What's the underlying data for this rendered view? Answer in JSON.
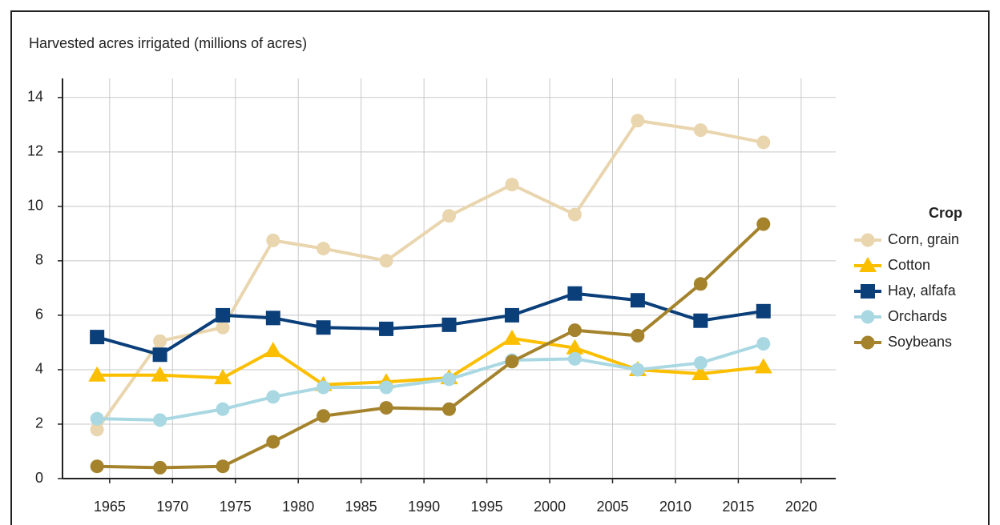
{
  "chart_data": {
    "type": "line",
    "y_label": "Harvested acres irrigated (millions of acres)",
    "legend_title": "Crop",
    "legend": "right",
    "grid": true,
    "x": [
      1964,
      1969,
      1974,
      1978,
      1982,
      1987,
      1992,
      1997,
      2002,
      2007,
      2012,
      2017
    ],
    "xlim": [
      1961.25,
      2022.75
    ],
    "xticks": [
      1965,
      1970,
      1975,
      1980,
      1985,
      1990,
      1995,
      2000,
      2005,
      2010,
      2015,
      2020
    ],
    "ylim": [
      0,
      14.7
    ],
    "yticks": [
      0,
      2,
      4,
      6,
      8,
      10,
      12,
      14
    ],
    "series": [
      {
        "name": "Corn, grain",
        "color": "#e9d5ae",
        "marker": "circle",
        "values": [
          1.8,
          5.05,
          5.55,
          8.75,
          8.45,
          8.0,
          9.65,
          10.8,
          9.7,
          13.15,
          12.8,
          12.35
        ]
      },
      {
        "name": "Cotton",
        "color": "#fbbf00",
        "marker": "triangle",
        "values": [
          3.8,
          3.8,
          3.7,
          4.7,
          3.45,
          3.55,
          3.7,
          5.15,
          4.8,
          4.0,
          3.85,
          4.1
        ]
      },
      {
        "name": "Hay, alfafa",
        "color": "#0a3f7a",
        "marker": "square",
        "values": [
          5.2,
          4.55,
          6.0,
          5.9,
          5.55,
          5.5,
          5.65,
          6.0,
          6.8,
          6.55,
          5.8,
          6.15
        ]
      },
      {
        "name": "Orchards",
        "color": "#a9d8e3",
        "marker": "circle",
        "values": [
          2.2,
          2.15,
          2.55,
          3.0,
          3.35,
          3.35,
          3.65,
          4.35,
          4.4,
          4.0,
          4.25,
          4.95
        ]
      },
      {
        "name": "Soybeans",
        "color": "#a4832c",
        "marker": "circle",
        "values": [
          0.45,
          0.4,
          0.45,
          1.35,
          2.3,
          2.6,
          2.55,
          4.3,
          5.45,
          5.25,
          7.15,
          9.35
        ]
      }
    ]
  }
}
